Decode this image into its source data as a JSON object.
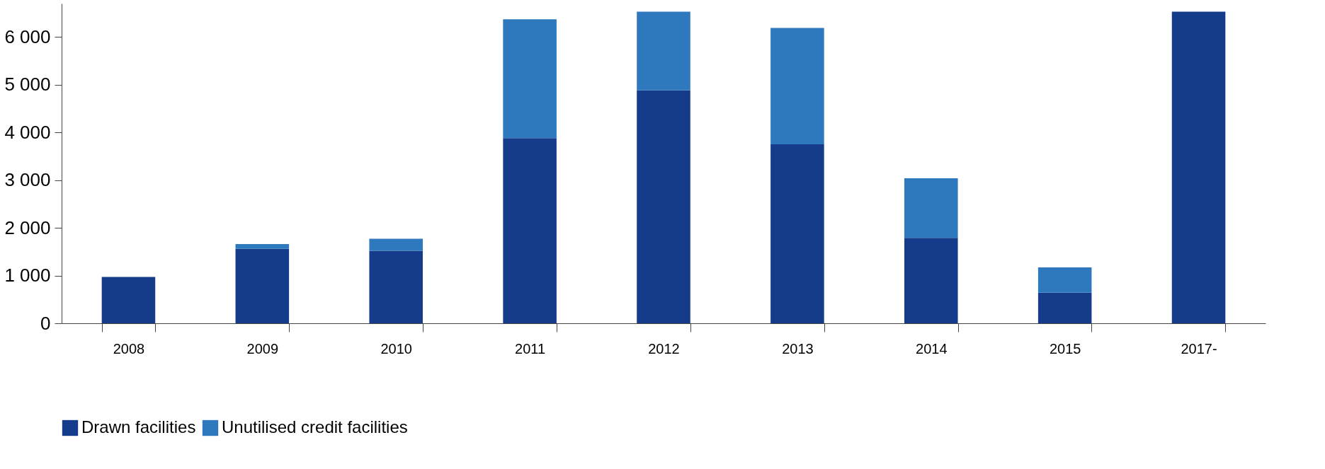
{
  "chart_data": {
    "type": "bar",
    "stacked": true,
    "categories": [
      "2008",
      "2009",
      "2010",
      "2011",
      "2012",
      "2013",
      "2014",
      "2015",
      "2017-"
    ],
    "series": [
      {
        "name": "Drawn facilities",
        "color": "#153c8a",
        "values": [
          970,
          1560,
          1520,
          3880,
          4880,
          3750,
          1790,
          640,
          6530
        ]
      },
      {
        "name": "Unutilised credit facilities",
        "color": "#2e78bd",
        "values": [
          null,
          100,
          250,
          2490,
          1650,
          2440,
          1250,
          530,
          null
        ]
      }
    ],
    "ylim": [
      0,
      6700
    ],
    "yticks": [
      {
        "value": 0,
        "label": "0"
      },
      {
        "value": 1000,
        "label": "1 000"
      },
      {
        "value": 2000,
        "label": "2 000"
      },
      {
        "value": 3000,
        "label": "3 000"
      },
      {
        "value": 4000,
        "label": "4 000"
      },
      {
        "value": 5000,
        "label": "5 000"
      },
      {
        "value": 6000,
        "label": "6 000"
      }
    ],
    "grid": false,
    "legend": "bottom"
  }
}
